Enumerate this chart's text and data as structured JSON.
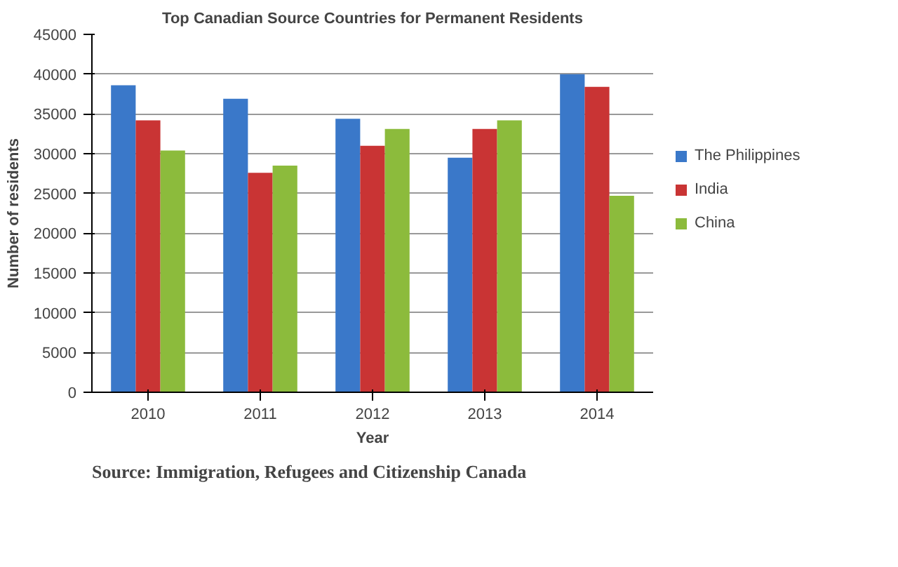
{
  "chart_data": {
    "type": "bar",
    "title": "Top Canadian Source Countries for Permanent Residents",
    "xlabel": "Year",
    "ylabel": "Number of residents",
    "categories": [
      "2010",
      "2011",
      "2012",
      "2013",
      "2014"
    ],
    "series": [
      {
        "name": "The Philippines",
        "color": "#3a78c9",
        "values": [
          38600,
          36900,
          34400,
          29500,
          40000
        ]
      },
      {
        "name": "India",
        "color": "#c93434",
        "values": [
          34200,
          27600,
          31000,
          33100,
          38400
        ]
      },
      {
        "name": "China",
        "color": "#8cbb3c",
        "values": [
          30400,
          28500,
          33100,
          34200,
          24700
        ]
      }
    ],
    "ylim": [
      0,
      45000
    ],
    "yticks": [
      0,
      5000,
      10000,
      15000,
      20000,
      25000,
      30000,
      35000,
      40000,
      45000
    ],
    "grid": "y",
    "legend": "right",
    "annotations": [
      "Source: Immigration, Refugees and Citizenship Canada"
    ]
  }
}
